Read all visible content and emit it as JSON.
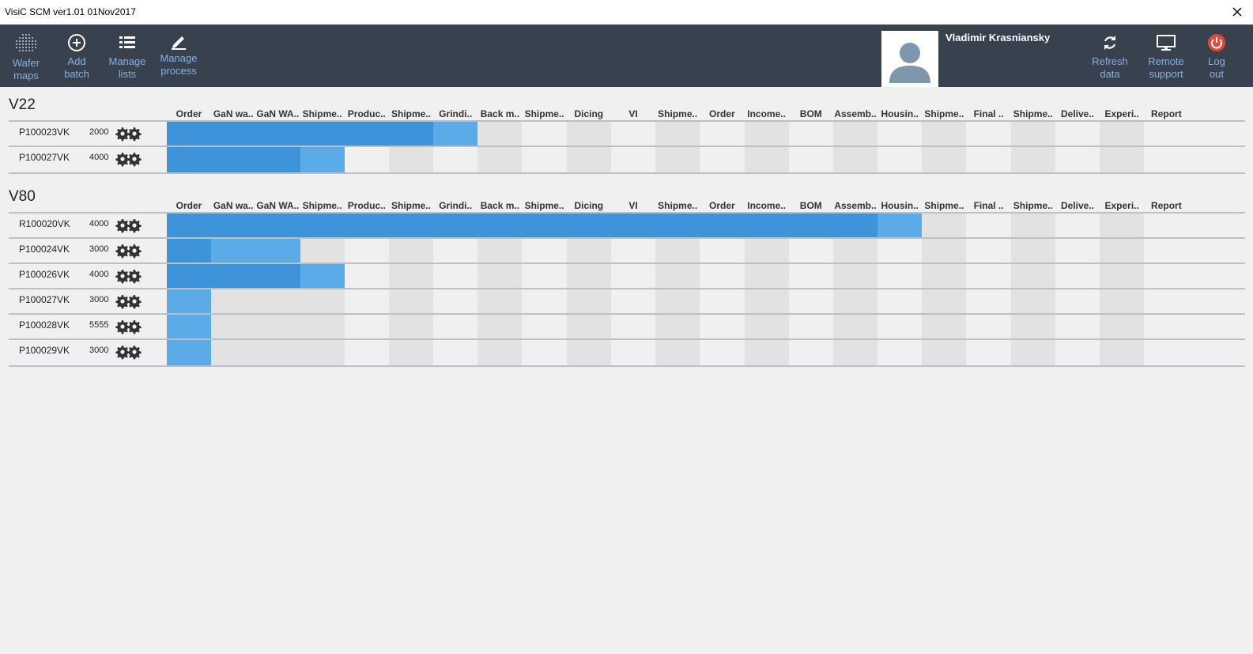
{
  "window": {
    "title": "VisiC SCM ver1.01 01Nov2017"
  },
  "toolbar": {
    "wafer_maps": "Wafer\nmaps",
    "add_batch": "Add\nbatch",
    "manage_lists": "Manage\nlists",
    "manage_process": "Manage\nprocess",
    "refresh_data": "Refresh\ndata",
    "remote_support": "Remote\nsupport",
    "log_out": "Log\nout"
  },
  "user": {
    "name": "Vladimir Krasniansky"
  },
  "columns": [
    "Order",
    "GaN wa..",
    "GaN WA..",
    "Shipme..",
    "Produc..",
    "Shipme..",
    "Grindi..",
    "Back m..",
    "Shipme..",
    "Dicing",
    "VI",
    "Shipme..",
    "Order",
    "Income..",
    "BOM",
    "Assemb..",
    "Housin..",
    "Shipme..",
    "Final ..",
    "Shipme..",
    "Delive..",
    "Experi..",
    "Report"
  ],
  "colors": {
    "completed": "#3d94d8",
    "current": "#5aabe8",
    "toolbar": "#37424e",
    "accent_text": "#7fb3e6",
    "logout": "#e0493a"
  },
  "sections": [
    {
      "name": "V22",
      "batches": [
        {
          "id": "P100023VK",
          "qty": "2000",
          "completed": 6,
          "current": 1,
          "not_started": 0
        },
        {
          "id": "P100027VK",
          "qty": "4000",
          "completed": 3,
          "current": 1,
          "not_started": 0
        }
      ]
    },
    {
      "name": "V80",
      "batches": [
        {
          "id": "R100020VK",
          "qty": "4000",
          "completed": 16,
          "current": 1,
          "not_started": 0
        },
        {
          "id": "P100024VK",
          "qty": "3000",
          "completed": 1,
          "current": 2,
          "not_started": 0
        },
        {
          "id": "P100026VK",
          "qty": "4000",
          "completed": 3,
          "current": 1,
          "not_started": 0
        },
        {
          "id": "P100027VK",
          "qty": "3000",
          "completed": 0,
          "current": 1,
          "not_started": 2
        },
        {
          "id": "P100028VK",
          "qty": "5555",
          "completed": 0,
          "current": 1,
          "not_started": 2
        },
        {
          "id": "P100029VK",
          "qty": "3000",
          "completed": 0,
          "current": 1,
          "not_started": 2
        }
      ]
    }
  ]
}
